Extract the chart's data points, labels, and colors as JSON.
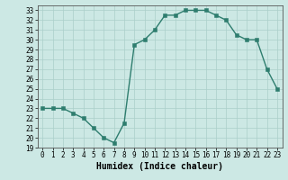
{
  "x": [
    0,
    1,
    2,
    3,
    4,
    5,
    6,
    7,
    8,
    9,
    10,
    11,
    12,
    13,
    14,
    15,
    16,
    17,
    18,
    19,
    20,
    21,
    22,
    23
  ],
  "y": [
    23,
    23,
    23,
    22.5,
    22,
    21,
    20,
    19.5,
    21.5,
    29.5,
    30,
    31,
    32.5,
    32.5,
    33,
    33,
    33,
    32.5,
    32,
    30.5,
    30,
    30,
    27,
    25
  ],
  "line_color": "#2e7d6e",
  "marker_color": "#2e7d6e",
  "bg_color": "#cce8e4",
  "grid_color": "#aacfca",
  "axis_color": "#2e7d6e",
  "xlabel": "Humidex (Indice chaleur)",
  "xlim": [
    -0.5,
    23.5
  ],
  "ylim": [
    19,
    33.5
  ],
  "yticks": [
    19,
    20,
    21,
    22,
    23,
    24,
    25,
    26,
    27,
    28,
    29,
    30,
    31,
    32,
    33
  ],
  "xticks": [
    0,
    1,
    2,
    3,
    4,
    5,
    6,
    7,
    8,
    9,
    10,
    11,
    12,
    13,
    14,
    15,
    16,
    17,
    18,
    19,
    20,
    21,
    22,
    23
  ],
  "tick_fontsize": 5.5,
  "xlabel_fontsize": 7.0,
  "marker_size": 2.5,
  "line_width": 1.0
}
